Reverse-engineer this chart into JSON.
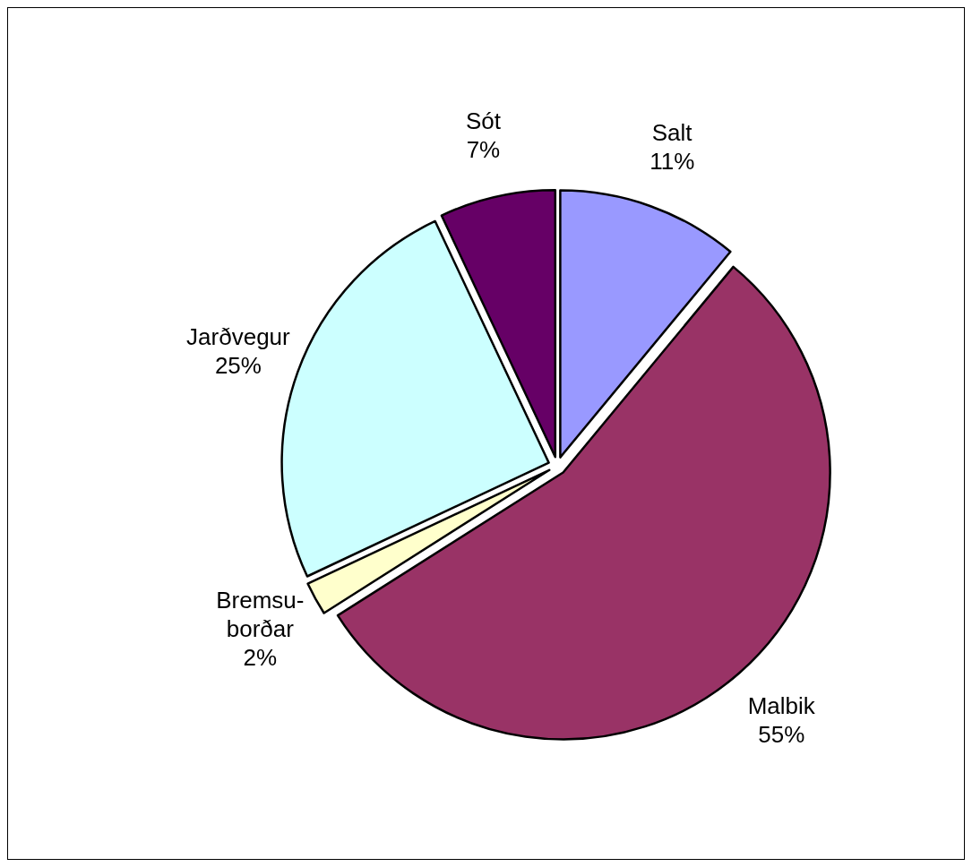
{
  "chart_data": {
    "type": "pie",
    "categories": [
      "Salt",
      "Malbik",
      "Bremsu-borðar",
      "Jarðvegur",
      "Sót"
    ],
    "values": [
      11,
      55,
      2,
      25,
      7
    ],
    "colors": [
      "#9999ff",
      "#993366",
      "#ffffcc",
      "#ccffff",
      "#660066"
    ],
    "value_labels": [
      "11%",
      "55%",
      "2%",
      "25%",
      "7%"
    ]
  }
}
